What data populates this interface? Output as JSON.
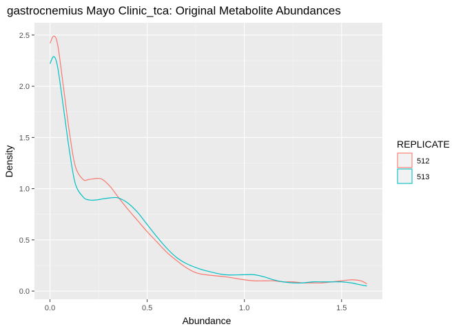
{
  "chart_data": {
    "type": "line",
    "title": "gastrocnemius Mayo Clinic_tca: Original Metabolite Abundances",
    "xlabel": "Abundance",
    "ylabel": "Density",
    "xlim": [
      -0.08,
      1.71
    ],
    "ylim": [
      -0.08,
      2.62
    ],
    "x_ticks": [
      0.0,
      0.5,
      1.0,
      1.5
    ],
    "x_tick_labels": [
      "0.0",
      "0.5",
      "1.0",
      "1.5"
    ],
    "y_ticks": [
      0.0,
      0.5,
      1.0,
      1.5,
      2.0,
      2.5
    ],
    "y_tick_labels": [
      "0.0",
      "0.5",
      "1.0",
      "1.5",
      "2.0",
      "2.5"
    ],
    "grid": true,
    "legend": {
      "title": "REPLICATE",
      "position": "right"
    },
    "series": [
      {
        "name": "512",
        "color": "#F8766D",
        "x": [
          0.0,
          0.02,
          0.04,
          0.07,
          0.1,
          0.13,
          0.17,
          0.2,
          0.24,
          0.27,
          0.31,
          0.35,
          0.4,
          0.45,
          0.5,
          0.55,
          0.6,
          0.65,
          0.7,
          0.75,
          0.8,
          0.9,
          1.0,
          1.05,
          1.1,
          1.15,
          1.2,
          1.25,
          1.3,
          1.35,
          1.4,
          1.45,
          1.5,
          1.55,
          1.6,
          1.63
        ],
        "y": [
          2.42,
          2.49,
          2.4,
          1.98,
          1.55,
          1.22,
          1.09,
          1.09,
          1.1,
          1.09,
          1.02,
          0.92,
          0.8,
          0.69,
          0.58,
          0.48,
          0.38,
          0.3,
          0.23,
          0.18,
          0.16,
          0.14,
          0.11,
          0.1,
          0.1,
          0.1,
          0.09,
          0.09,
          0.08,
          0.08,
          0.08,
          0.09,
          0.1,
          0.11,
          0.1,
          0.07
        ]
      },
      {
        "name": "513",
        "color": "#00BFC4",
        "x": [
          0.0,
          0.02,
          0.04,
          0.07,
          0.1,
          0.13,
          0.17,
          0.2,
          0.24,
          0.27,
          0.31,
          0.35,
          0.4,
          0.45,
          0.5,
          0.55,
          0.6,
          0.65,
          0.7,
          0.75,
          0.8,
          0.9,
          1.0,
          1.05,
          1.1,
          1.15,
          1.2,
          1.25,
          1.3,
          1.35,
          1.4,
          1.45,
          1.5,
          1.55,
          1.6,
          1.63
        ],
        "y": [
          2.22,
          2.29,
          2.18,
          1.78,
          1.37,
          1.05,
          0.92,
          0.89,
          0.89,
          0.9,
          0.91,
          0.91,
          0.86,
          0.77,
          0.65,
          0.53,
          0.42,
          0.33,
          0.27,
          0.23,
          0.2,
          0.16,
          0.16,
          0.16,
          0.14,
          0.11,
          0.09,
          0.08,
          0.08,
          0.09,
          0.09,
          0.09,
          0.09,
          0.08,
          0.06,
          0.05
        ]
      }
    ]
  }
}
